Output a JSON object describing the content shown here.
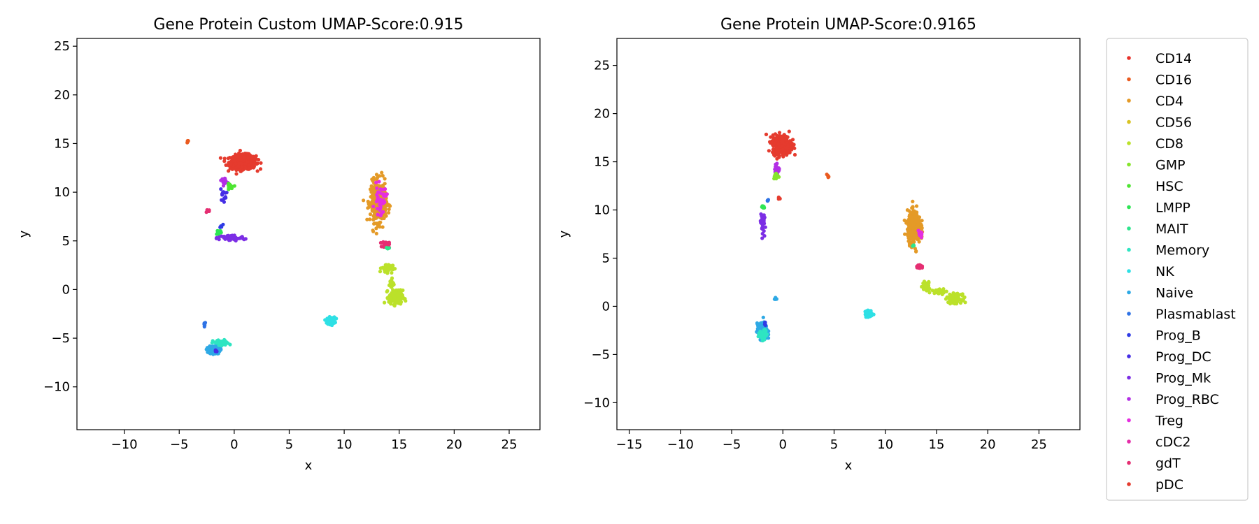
{
  "chart_data": [
    {
      "type": "scatter",
      "title": "Gene Protein Custom UMAP-Score:0.915",
      "xlabel": "x",
      "ylabel": "y",
      "xlim": [
        -14.3,
        27.8
      ],
      "ylim": [
        -14.4,
        25.8
      ],
      "xticks": [
        -10,
        -5,
        0,
        5,
        10,
        15,
        20,
        25
      ],
      "yticks": [
        -10,
        -5,
        0,
        5,
        10,
        15,
        20,
        25
      ],
      "grid": false,
      "clusters": [
        {
          "label": "pDC",
          "x": 0.8,
          "y": 13.1,
          "rx": 1.3,
          "ry": 0.8,
          "n": 500
        },
        {
          "label": "CD16",
          "x": -4.2,
          "y": 15.2,
          "rx": 0.12,
          "ry": 0.12,
          "n": 6
        },
        {
          "label": "gdT",
          "x": -2.4,
          "y": 8.1,
          "rx": 0.2,
          "ry": 0.25,
          "n": 8
        },
        {
          "label": "Prog_RBC",
          "x": -0.9,
          "y": 11.2,
          "rx": 0.3,
          "ry": 0.3,
          "n": 20
        },
        {
          "label": "HSC",
          "x": -0.4,
          "y": 10.5,
          "rx": 0.3,
          "ry": 0.4,
          "n": 20
        },
        {
          "label": "Prog_DC",
          "x": -1.0,
          "y": 9.8,
          "rx": 0.3,
          "ry": 0.8,
          "n": 15
        },
        {
          "label": "Prog_B",
          "x": -1.2,
          "y": 6.5,
          "rx": 0.2,
          "ry": 0.2,
          "n": 6
        },
        {
          "label": "Prog_Mk",
          "x": -0.3,
          "y": 5.3,
          "rx": 1.4,
          "ry": 0.35,
          "n": 70
        },
        {
          "label": "LMPP",
          "x": -1.4,
          "y": 5.9,
          "rx": 0.3,
          "ry": 0.3,
          "n": 12
        },
        {
          "label": "Plasmablast",
          "x": -2.7,
          "y": -3.5,
          "rx": 0.1,
          "ry": 0.25,
          "n": 8
        },
        {
          "label": "Naive",
          "x": -1.8,
          "y": -6.2,
          "rx": 0.55,
          "ry": 0.45,
          "n": 180
        },
        {
          "label": "Memory",
          "x": -1.2,
          "y": -5.5,
          "rx": 0.8,
          "ry": 0.35,
          "n": 60
        },
        {
          "label": "Prog_DC",
          "x": -1.6,
          "y": -6.3,
          "rx": 0.2,
          "ry": 0.15,
          "n": 6
        },
        {
          "label": "NK",
          "x": 8.8,
          "y": -3.2,
          "rx": 0.4,
          "ry": 0.4,
          "n": 80
        },
        {
          "label": "CD4",
          "x": 13.1,
          "y": 9.0,
          "rx": 0.8,
          "ry": 2.3,
          "n": 380
        },
        {
          "label": "Treg",
          "x": 13.3,
          "y": 9.2,
          "rx": 0.6,
          "ry": 1.6,
          "n": 40
        },
        {
          "label": "gdT",
          "x": 13.8,
          "y": 4.6,
          "rx": 0.35,
          "ry": 0.35,
          "n": 30
        },
        {
          "label": "MAIT",
          "x": 14.0,
          "y": 4.3,
          "rx": 0.2,
          "ry": 0.2,
          "n": 6
        },
        {
          "label": "CD8",
          "x": 13.9,
          "y": 2.2,
          "rx": 0.55,
          "ry": 0.5,
          "n": 60
        },
        {
          "label": "CD8",
          "x": 14.7,
          "y": -0.8,
          "rx": 0.7,
          "ry": 0.8,
          "n": 160
        },
        {
          "label": "CD8",
          "x": 14.3,
          "y": 0.6,
          "rx": 0.25,
          "ry": 0.6,
          "n": 20
        }
      ]
    },
    {
      "type": "scatter",
      "title": "Gene Protein UMAP-Score:0.9165",
      "xlabel": "x",
      "ylabel": "y",
      "xlim": [
        -16.2,
        29.0
      ],
      "ylim": [
        -12.8,
        27.8
      ],
      "xticks": [
        -15,
        -10,
        -5,
        0,
        5,
        10,
        15,
        20,
        25
      ],
      "yticks": [
        -10,
        -5,
        0,
        5,
        10,
        15,
        20,
        25
      ],
      "grid": false,
      "clusters": [
        {
          "label": "pDC",
          "x": -0.1,
          "y": 16.8,
          "rx": 1.0,
          "ry": 1.1,
          "n": 420
        },
        {
          "label": "CD16",
          "x": 4.4,
          "y": 13.5,
          "rx": 0.12,
          "ry": 0.12,
          "n": 6
        },
        {
          "label": "pDC",
          "x": -0.4,
          "y": 11.2,
          "rx": 0.15,
          "ry": 0.15,
          "n": 6
        },
        {
          "label": "Prog_RBC",
          "x": -0.5,
          "y": 14.2,
          "rx": 0.3,
          "ry": 0.6,
          "n": 20
        },
        {
          "label": "GMP",
          "x": -0.7,
          "y": 13.5,
          "rx": 0.25,
          "ry": 0.4,
          "n": 12
        },
        {
          "label": "Plasmablast",
          "x": -1.5,
          "y": 11.0,
          "rx": 0.15,
          "ry": 0.15,
          "n": 5
        },
        {
          "label": "Prog_Mk",
          "x": -2.0,
          "y": 8.8,
          "rx": 0.2,
          "ry": 1.3,
          "n": 50
        },
        {
          "label": "LMPP",
          "x": -2.0,
          "y": 10.3,
          "rx": 0.3,
          "ry": 0.2,
          "n": 10
        },
        {
          "label": "Naive",
          "x": -0.7,
          "y": 0.8,
          "rx": 0.12,
          "ry": 0.15,
          "n": 6
        },
        {
          "label": "Naive",
          "x": -2.0,
          "y": -2.6,
          "rx": 0.55,
          "ry": 0.9,
          "n": 180
        },
        {
          "label": "Memory",
          "x": -1.9,
          "y": -3.0,
          "rx": 0.5,
          "ry": 0.6,
          "n": 40
        },
        {
          "label": "Prog_B",
          "x": -1.7,
          "y": -1.7,
          "rx": 0.1,
          "ry": 0.2,
          "n": 5
        },
        {
          "label": "NK",
          "x": 8.4,
          "y": -0.8,
          "rx": 0.4,
          "ry": 0.4,
          "n": 80
        },
        {
          "label": "CD4",
          "x": 12.8,
          "y": 8.2,
          "rx": 0.7,
          "ry": 1.8,
          "n": 360
        },
        {
          "label": "Treg",
          "x": 13.4,
          "y": 7.5,
          "rx": 0.3,
          "ry": 0.4,
          "n": 20
        },
        {
          "label": "gdT",
          "x": 13.3,
          "y": 4.1,
          "rx": 0.3,
          "ry": 0.35,
          "n": 25
        },
        {
          "label": "CD8",
          "x": 14.0,
          "y": 2.1,
          "rx": 0.4,
          "ry": 0.5,
          "n": 50
        },
        {
          "label": "CD8",
          "x": 15.3,
          "y": 1.6,
          "rx": 0.8,
          "ry": 0.35,
          "n": 40
        },
        {
          "label": "CD8",
          "x": 16.8,
          "y": 0.8,
          "rx": 0.7,
          "ry": 0.5,
          "n": 120
        },
        {
          "label": "MAIT",
          "x": 12.7,
          "y": 6.3,
          "rx": 0.2,
          "ry": 0.2,
          "n": 5
        }
      ]
    }
  ],
  "legend": {
    "placement": "outside-right",
    "entries": [
      {
        "label": "CD14",
        "color": "#e8312a"
      },
      {
        "label": "CD16",
        "color": "#ea5a1f"
      },
      {
        "label": "CD4",
        "color": "#e49a27"
      },
      {
        "label": "CD56",
        "color": "#d9c324"
      },
      {
        "label": "CD8",
        "color": "#bbe12a"
      },
      {
        "label": "GMP",
        "color": "#86e52c"
      },
      {
        "label": "HSC",
        "color": "#4ee532"
      },
      {
        "label": "LMPP",
        "color": "#2ee554"
      },
      {
        "label": "MAIT",
        "color": "#2ee58d"
      },
      {
        "label": "Memory",
        "color": "#2ee5c2"
      },
      {
        "label": "NK",
        "color": "#2ee0e5"
      },
      {
        "label": "Naive",
        "color": "#2ea9e5"
      },
      {
        "label": "Plasmablast",
        "color": "#2e72e5"
      },
      {
        "label": "Prog_B",
        "color": "#2e3be5"
      },
      {
        "label": "Prog_DC",
        "color": "#452ee5"
      },
      {
        "label": "Prog_Mk",
        "color": "#7c2ee5"
      },
      {
        "label": "Prog_RBC",
        "color": "#b32ee5"
      },
      {
        "label": "Treg",
        "color": "#e52ee0"
      },
      {
        "label": "cDC2",
        "color": "#e52ea9"
      },
      {
        "label": "gdT",
        "color": "#e52e72"
      },
      {
        "label": "pDC",
        "color": "#e53b2e"
      }
    ]
  }
}
